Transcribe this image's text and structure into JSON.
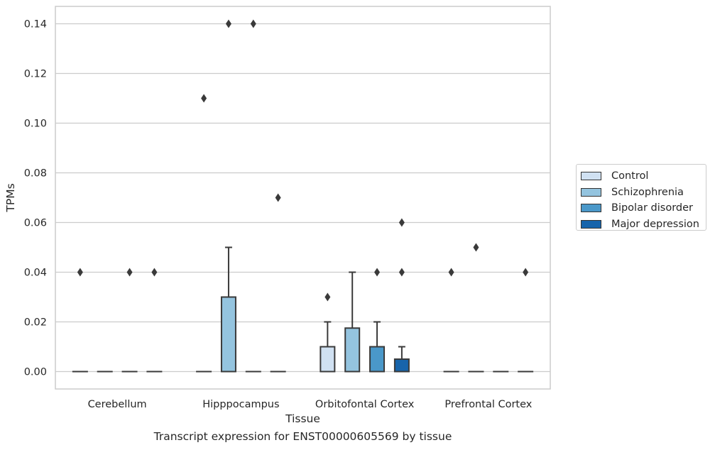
{
  "caption": "Transcript expression for ENST00000605569 by tissue",
  "chart_data": {
    "type": "boxplot",
    "xlabel": "Tissue",
    "ylabel": "TPMs",
    "ylim": [
      -0.007,
      0.147
    ],
    "yticks": [
      0.0,
      0.02,
      0.04,
      0.06,
      0.08,
      0.1,
      0.12,
      0.14
    ],
    "ytick_labels": [
      "0.00",
      "0.02",
      "0.04",
      "0.06",
      "0.08",
      "0.10",
      "0.12",
      "0.14"
    ],
    "grid": "horizontal",
    "legend_position": "right",
    "categories": [
      "Cerebellum",
      "Hipppocampus",
      "Orbitofontal Cortex",
      "Prefrontal Cortex"
    ],
    "series": [
      {
        "name": "Control",
        "color": "#d0e1f2",
        "boxes": [
          {
            "q1": 0,
            "median": 0,
            "q3": 0,
            "whisker_low": 0,
            "whisker_high": 0,
            "outliers": [
              0.04
            ]
          },
          {
            "q1": 0,
            "median": 0,
            "q3": 0,
            "whisker_low": 0,
            "whisker_high": 0,
            "outliers": [
              0.11
            ]
          },
          {
            "q1": 0,
            "median": 0,
            "q3": 0.01,
            "whisker_low": 0,
            "whisker_high": 0.02,
            "outliers": [
              0.03
            ]
          },
          {
            "q1": 0,
            "median": 0,
            "q3": 0,
            "whisker_low": 0,
            "whisker_high": 0,
            "outliers": [
              0.04
            ]
          }
        ]
      },
      {
        "name": "Schizophrenia",
        "color": "#94c4df",
        "boxes": [
          {
            "q1": 0,
            "median": 0,
            "q3": 0,
            "whisker_low": 0,
            "whisker_high": 0,
            "outliers": []
          },
          {
            "q1": 0,
            "median": 0,
            "q3": 0.03,
            "whisker_low": 0,
            "whisker_high": 0.05,
            "outliers": [
              0.14
            ]
          },
          {
            "q1": 0,
            "median": 0,
            "q3": 0.0175,
            "whisker_low": 0,
            "whisker_high": 0.04,
            "outliers": []
          },
          {
            "q1": 0,
            "median": 0,
            "q3": 0,
            "whisker_low": 0,
            "whisker_high": 0,
            "outliers": [
              0.05
            ]
          }
        ]
      },
      {
        "name": "Bipolar disorder",
        "color": "#4a98c9",
        "boxes": [
          {
            "q1": 0,
            "median": 0,
            "q3": 0,
            "whisker_low": 0,
            "whisker_high": 0,
            "outliers": [
              0.04
            ]
          },
          {
            "q1": 0,
            "median": 0,
            "q3": 0,
            "whisker_low": 0,
            "whisker_high": 0,
            "outliers": [
              0.14
            ]
          },
          {
            "q1": 0,
            "median": 0,
            "q3": 0.01,
            "whisker_low": 0,
            "whisker_high": 0.02,
            "outliers": [
              0.04
            ]
          },
          {
            "q1": 0,
            "median": 0,
            "q3": 0,
            "whisker_low": 0,
            "whisker_high": 0,
            "outliers": []
          }
        ]
      },
      {
        "name": "Major depression",
        "color": "#1764ab",
        "boxes": [
          {
            "q1": 0,
            "median": 0,
            "q3": 0,
            "whisker_low": 0,
            "whisker_high": 0,
            "outliers": [
              0.04
            ]
          },
          {
            "q1": 0,
            "median": 0,
            "q3": 0,
            "whisker_low": 0,
            "whisker_high": 0,
            "outliers": [
              0.07
            ]
          },
          {
            "q1": 0,
            "median": 0,
            "q3": 0.005,
            "whisker_low": 0,
            "whisker_high": 0.01,
            "outliers": [
              0.04,
              0.06
            ]
          },
          {
            "q1": 0,
            "median": 0,
            "q3": 0,
            "whisker_low": 0,
            "whisker_high": 0,
            "outliers": [
              0.04
            ]
          }
        ]
      }
    ]
  }
}
